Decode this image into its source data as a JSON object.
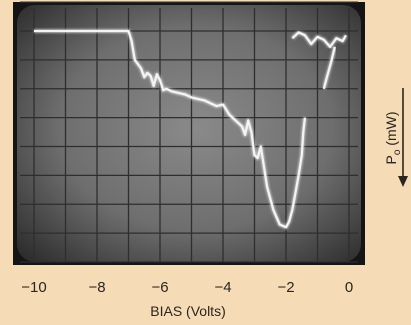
{
  "chart_data": {
    "type": "line",
    "title": "",
    "xlabel": "BIAS (Volts)",
    "ylabel_main": "P",
    "ylabel_sub": "o",
    "ylabel_unit": " (mW)",
    "ylabel_arrow": "down",
    "x_ticks": [
      "−10",
      "−8",
      "−6",
      "−4",
      "−2",
      "0"
    ],
    "xlim": [
      -10,
      0
    ],
    "grid": true,
    "y_direction": "inverted (power increases downward)",
    "series": [
      {
        "x": [
          -10.0,
          -9.5,
          -9.0,
          -8.5,
          -8.0,
          -7.5,
          -7.0,
          -6.9,
          -6.8,
          -6.6,
          -6.5,
          -6.4,
          -6.3,
          -6.2,
          -6.1,
          -6.0,
          -5.9,
          -5.8,
          -5.6,
          -5.4,
          -5.2,
          -5.0,
          -4.8,
          -4.6,
          -4.4,
          -4.2,
          -4.0,
          -3.8,
          -3.6,
          -3.4,
          -3.3,
          -3.2,
          -3.1,
          -3.0,
          -2.9,
          -2.8,
          -2.6,
          -2.4,
          -2.2,
          -2.0,
          -1.9,
          -1.8,
          -1.7,
          -1.6,
          -1.5,
          -1.45,
          -1.4
        ],
        "y": [
          0.0,
          0.0,
          0.0,
          0.0,
          0.0,
          0.0,
          0.0,
          0.35,
          1.0,
          1.3,
          1.6,
          1.45,
          1.55,
          1.9,
          1.5,
          1.7,
          2.05,
          2.0,
          2.1,
          2.15,
          2.2,
          2.3,
          2.35,
          2.4,
          2.5,
          2.6,
          2.55,
          2.9,
          3.1,
          3.3,
          3.6,
          3.1,
          3.5,
          4.3,
          4.4,
          4.0,
          5.4,
          6.2,
          6.7,
          6.8,
          6.6,
          6.2,
          5.6,
          5.0,
          4.3,
          3.5,
          3.0
        ]
      },
      {
        "x": [
          -1.8,
          -1.6,
          -1.4,
          -1.2,
          -1.0,
          -0.8,
          -0.6,
          -0.4,
          -0.2,
          -0.1
        ],
        "y": [
          0.25,
          0.05,
          0.15,
          0.45,
          0.2,
          0.3,
          0.55,
          0.25,
          0.35,
          0.15
        ]
      },
      {
        "x": [
          -0.8,
          -0.7,
          -0.55,
          -0.45
        ],
        "y": [
          2.0,
          1.6,
          1.0,
          0.55
        ]
      }
    ]
  }
}
